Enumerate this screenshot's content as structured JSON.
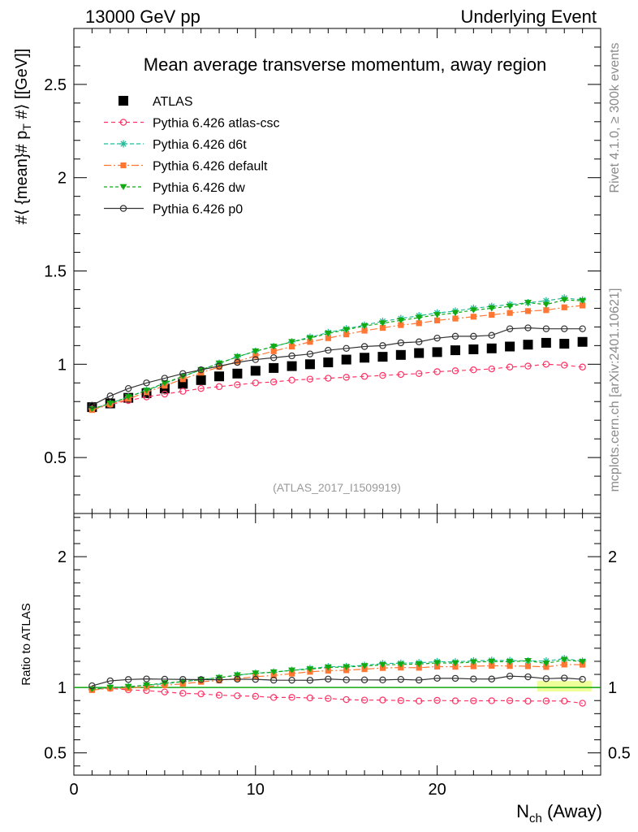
{
  "header": {
    "left": "13000 GeV pp",
    "right": "Underlying Event"
  },
  "side_text": {
    "top": "Rivet 4.1.0, ≥ 300k events",
    "bottom": "mcplots.cern.ch [arXiv:2401.10621]"
  },
  "chart_data": {
    "type": "line",
    "title": "Mean average transverse momentum, away region",
    "xlabel": "N_ch (Away)",
    "xlabel_main": "N",
    "xlabel_sub": "ch",
    "xlabel_rest": " (Away)",
    "ylabel": "#⟨ {mean}# p_T #⟩ [[GeV]]",
    "ylabel_pre": "#⟨ {mean}# p",
    "ylabel_sub": "T",
    "ylabel_post": " #⟩ [[GeV]]",
    "ratio_ylabel": "Ratio to ATLAS",
    "watermark": "(ATLAS_2017_I1509919)",
    "xlim": [
      0,
      29
    ],
    "ylim": [
      0.2,
      2.8
    ],
    "ratio_ylim": [
      0.33,
      2.33
    ],
    "xticks": [
      0,
      10,
      20
    ],
    "xtick_labels": [
      "0",
      "10",
      "20"
    ],
    "yticks": [
      0.5,
      1,
      1.5,
      2,
      2.5
    ],
    "ytick_labels": [
      "0.5",
      "1",
      "1.5",
      "2",
      "2.5"
    ],
    "ratio_yticks": [
      0.5,
      1,
      2
    ],
    "ratio_ytick_labels": [
      "0.5",
      "1",
      "2"
    ],
    "x": [
      1,
      2,
      3,
      4,
      5,
      6,
      7,
      8,
      9,
      10,
      11,
      12,
      13,
      14,
      15,
      16,
      17,
      18,
      19,
      20,
      21,
      22,
      23,
      24,
      25,
      26,
      27,
      28
    ],
    "series": [
      {
        "name": "ATLAS",
        "color": "#000000",
        "marker": "square",
        "dash": "",
        "values": [
          0.77,
          0.79,
          0.82,
          0.845,
          0.87,
          0.895,
          0.915,
          0.935,
          0.95,
          0.965,
          0.98,
          0.99,
          1.0,
          1.01,
          1.025,
          1.035,
          1.04,
          1.05,
          1.06,
          1.065,
          1.075,
          1.08,
          1.085,
          1.095,
          1.105,
          1.115,
          1.11,
          1.12
        ]
      },
      {
        "name": "Pythia 6.426 atlas-csc",
        "color": "#ff3366",
        "marker": "open-circle",
        "dash": "5,4",
        "values": [
          0.76,
          0.785,
          0.805,
          0.825,
          0.84,
          0.855,
          0.87,
          0.88,
          0.89,
          0.9,
          0.905,
          0.915,
          0.92,
          0.925,
          0.93,
          0.935,
          0.94,
          0.945,
          0.95,
          0.96,
          0.965,
          0.97,
          0.975,
          0.985,
          0.99,
          1.0,
          0.995,
          0.985
        ]
      },
      {
        "name": "Pythia 6.426 d6t",
        "color": "#22bb99",
        "marker": "star",
        "dash": "5,3",
        "values": [
          0.76,
          0.79,
          0.825,
          0.86,
          0.895,
          0.935,
          0.97,
          1.005,
          1.04,
          1.07,
          1.095,
          1.12,
          1.145,
          1.17,
          1.19,
          1.21,
          1.23,
          1.245,
          1.26,
          1.275,
          1.285,
          1.3,
          1.31,
          1.32,
          1.33,
          1.34,
          1.355,
          1.345
        ]
      },
      {
        "name": "Pythia 6.426 default",
        "color": "#ff7733",
        "marker": "filled-square",
        "dash": "9,3,2,3",
        "values": [
          0.755,
          0.785,
          0.815,
          0.85,
          0.885,
          0.92,
          0.955,
          0.985,
          1.015,
          1.045,
          1.07,
          1.095,
          1.12,
          1.14,
          1.16,
          1.18,
          1.195,
          1.21,
          1.22,
          1.235,
          1.245,
          1.255,
          1.265,
          1.275,
          1.285,
          1.29,
          1.305,
          1.315
        ]
      },
      {
        "name": "Pythia 6.426 dw",
        "color": "#11aa11",
        "marker": "triangle-down",
        "dash": "4,3",
        "values": [
          0.76,
          0.79,
          0.825,
          0.86,
          0.9,
          0.935,
          0.97,
          1.005,
          1.04,
          1.07,
          1.095,
          1.12,
          1.14,
          1.165,
          1.185,
          1.205,
          1.22,
          1.235,
          1.25,
          1.265,
          1.275,
          1.29,
          1.3,
          1.31,
          1.33,
          1.32,
          1.345,
          1.34
        ]
      },
      {
        "name": "Pythia 6.426 p0",
        "color": "#333333",
        "marker": "open-circle",
        "dash": "",
        "values": [
          0.78,
          0.83,
          0.87,
          0.9,
          0.925,
          0.95,
          0.97,
          0.99,
          1.01,
          1.025,
          1.035,
          1.045,
          1.055,
          1.075,
          1.085,
          1.095,
          1.1,
          1.115,
          1.12,
          1.14,
          1.15,
          1.15,
          1.155,
          1.19,
          1.195,
          1.19,
          1.19,
          1.19
        ]
      }
    ]
  }
}
